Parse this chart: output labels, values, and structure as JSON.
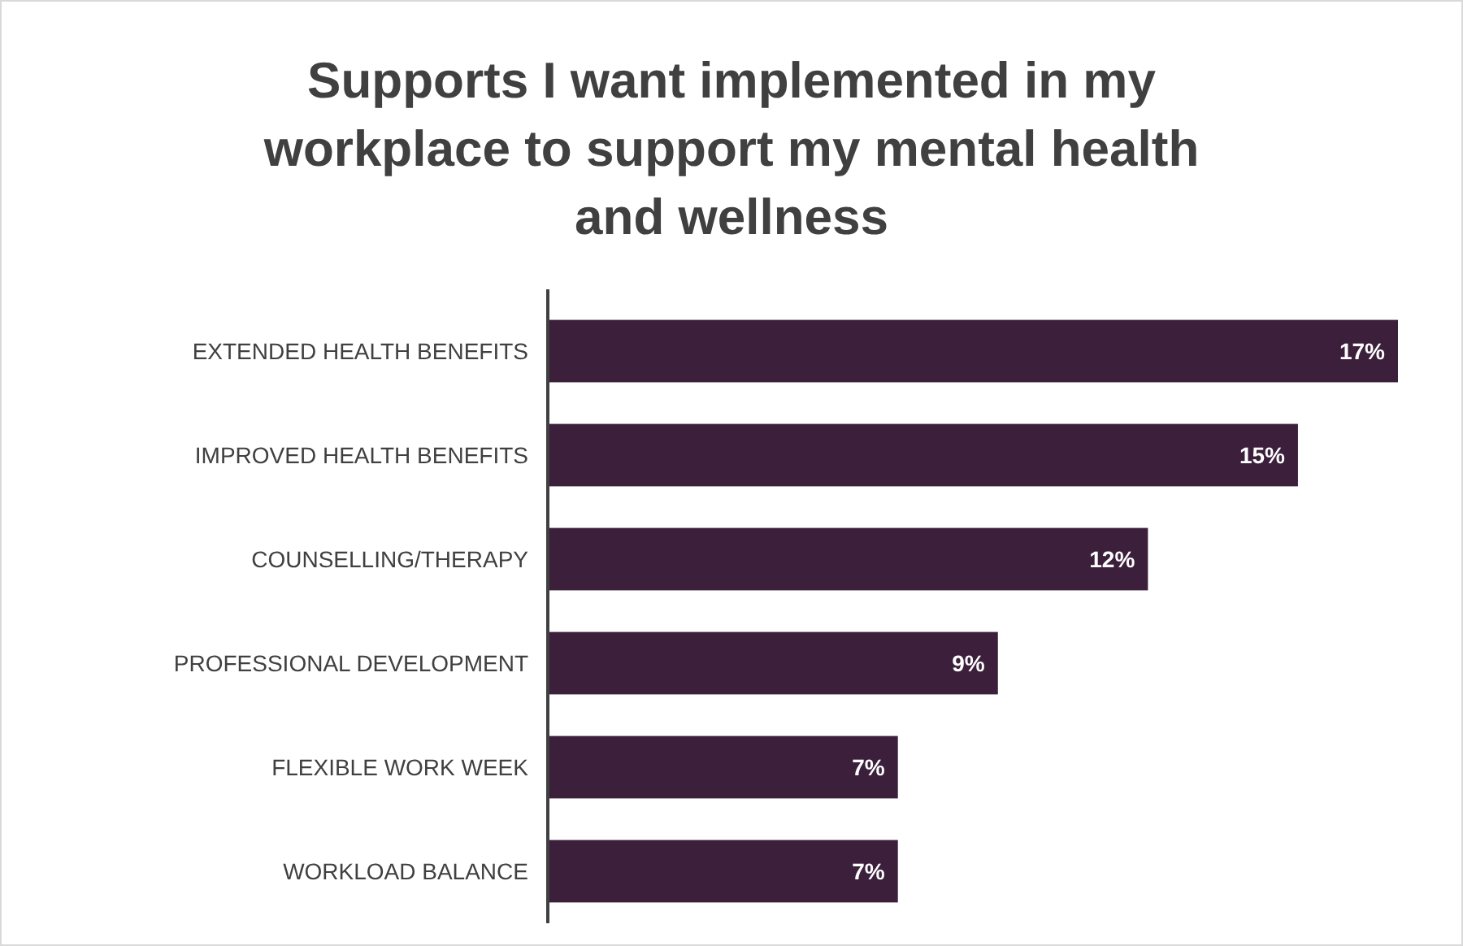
{
  "chart_data": {
    "type": "bar",
    "orientation": "horizontal",
    "title": "Supports I want implemented in my workplace to support my mental health and wellness",
    "categories": [
      "EXTENDED HEALTH BENEFITS",
      "IMPROVED HEALTH BENEFITS",
      "COUNSELLING/THERAPY",
      "PROFESSIONAL DEVELOPMENT",
      "FLEXIBLE WORK WEEK",
      "WORKLOAD BALANCE"
    ],
    "values": [
      17,
      15,
      12,
      9,
      7,
      7
    ],
    "value_labels": [
      "17%",
      "15%",
      "12%",
      "9%",
      "7%",
      "7%"
    ],
    "color": "#3b1f3b"
  }
}
